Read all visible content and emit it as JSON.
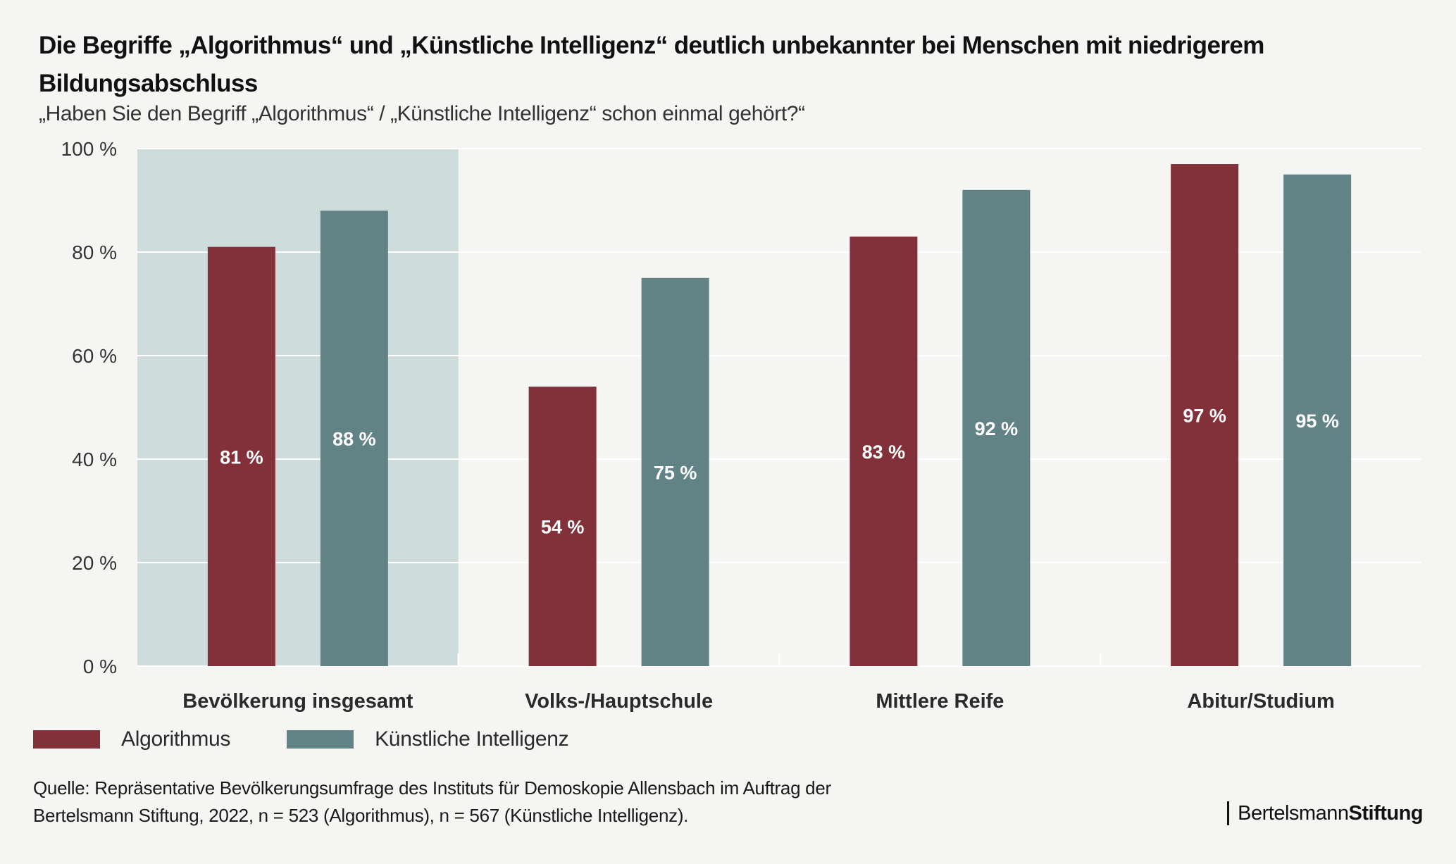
{
  "header": {
    "title": "Die Begriffe „Algorithmus“ und „Künstliche Intelligenz“ deutlich unbekannter bei Menschen mit niedrigerem Bildungsabschluss",
    "subtitle": "„Haben Sie den Begriff „Algorithmus“ / „Künstliche Intelligenz“ schon einmal gehört?“"
  },
  "chart_data": {
    "type": "bar",
    "title": "Die Begriffe „Algorithmus“ und „Künstliche Intelligenz“ deutlich unbekannter bei Menschen mit niedrigerem Bildungsabschluss",
    "subtitle": "„Haben Sie den Begriff „Algorithmus“ / „Künstliche Intelligenz“ schon einmal gehört?“",
    "xlabel": "",
    "ylabel": "",
    "ylim": [
      0,
      100
    ],
    "yticks": [
      0,
      20,
      40,
      60,
      80,
      100
    ],
    "ytick_labels": [
      "0 %",
      "20 %",
      "40 %",
      "60 %",
      "80 %",
      "100 %"
    ],
    "grid": true,
    "categories": [
      "Bevölkerung insgesamt",
      "Volks-/Hauptschule",
      "Mittlere Reife",
      "Abitur/Studium"
    ],
    "highlighted_category": "Bevölkerung insgesamt",
    "series": [
      {
        "name": "Algorithmus",
        "color": "#82313a",
        "values": [
          81,
          54,
          83,
          97
        ],
        "labels": [
          "81 %",
          "54 %",
          "83 %",
          "97 %"
        ]
      },
      {
        "name": "Künstliche Intelligenz",
        "color": "#628386",
        "values": [
          88,
          75,
          92,
          95
        ],
        "labels": [
          "88 %",
          "75 %",
          "92 %",
          "95 %"
        ]
      }
    ],
    "legend_position": "bottom-left"
  },
  "colors": {
    "background": "#f5f6f3",
    "highlight_band": "#cedddb",
    "gridline": "#ffffff",
    "algorithmus": "#82313a",
    "ki": "#628386"
  },
  "legend": {
    "items": [
      {
        "label": "Algorithmus",
        "color": "#82313a"
      },
      {
        "label": "Künstliche Intelligenz",
        "color": "#628386"
      }
    ]
  },
  "footer": {
    "source_line1": "Quelle: Repräsentative Bevölkerungsumfrage des Instituts für Demoskopie Allensbach im Auftrag der",
    "source_line2": "Bertelsmann Stiftung, 2022, n = 523 (Algorithmus), n = 567 (Künstliche Intelligenz).",
    "logo_regular": "Bertelsmann",
    "logo_bold": "Stiftung"
  }
}
